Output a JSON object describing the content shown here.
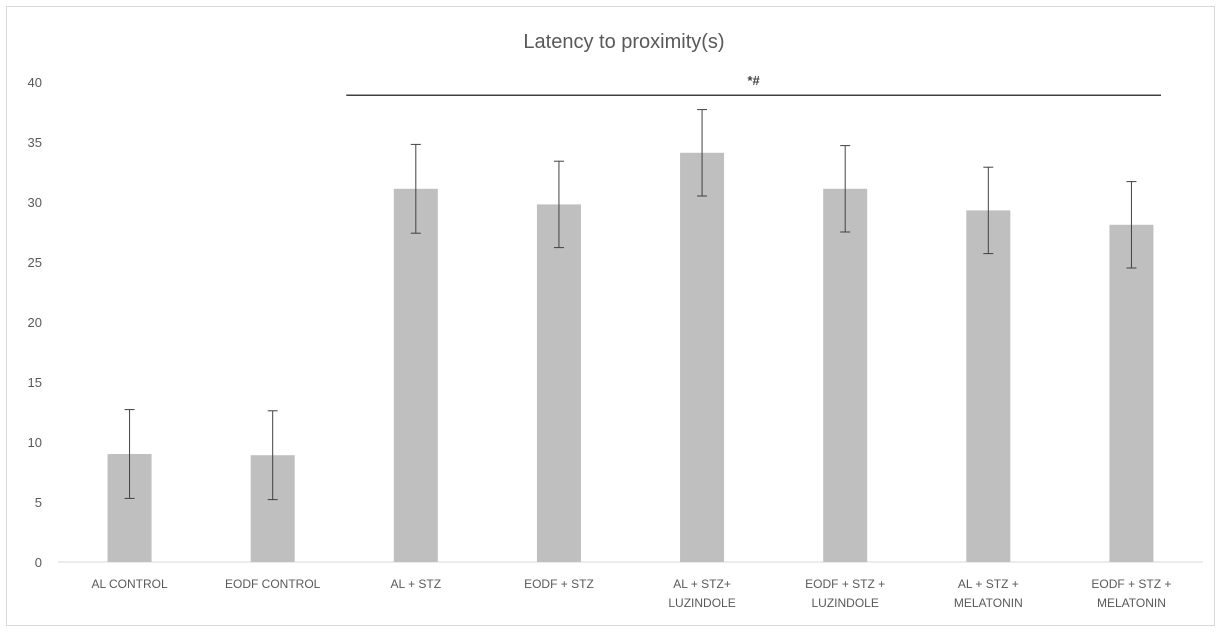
{
  "chart_data": {
    "type": "bar",
    "title": "Latency to proximity(s)",
    "xlabel": "",
    "ylabel": "",
    "ylim": [
      0,
      40
    ],
    "yticks": [
      0,
      5,
      10,
      15,
      20,
      25,
      30,
      35,
      40
    ],
    "grid": false,
    "legend": "none",
    "categories": [
      [
        "AL CONTROL"
      ],
      [
        "EODF CONTROL"
      ],
      [
        "AL + STZ"
      ],
      [
        "EODF + STZ"
      ],
      [
        "AL + STZ+",
        "LUZINDOLE"
      ],
      [
        "EODF + STZ +",
        "LUZINDOLE"
      ],
      [
        "AL + STZ +",
        "MELATONIN"
      ],
      [
        "EODF + STZ +",
        "MELATONIN"
      ]
    ],
    "values": [
      9.0,
      8.9,
      31.1,
      29.8,
      34.1,
      31.1,
      29.3,
      28.1
    ],
    "error": [
      3.7,
      3.7,
      3.7,
      3.6,
      3.6,
      3.6,
      3.6,
      3.6
    ],
    "significance": {
      "label": "*#",
      "y": 38.9,
      "from_category": 2,
      "to_category": 7
    },
    "colors": {
      "bar": "#bfbfbf",
      "error_bar": "#404040",
      "axis": "#d9d9d9",
      "text": "#595959"
    }
  }
}
